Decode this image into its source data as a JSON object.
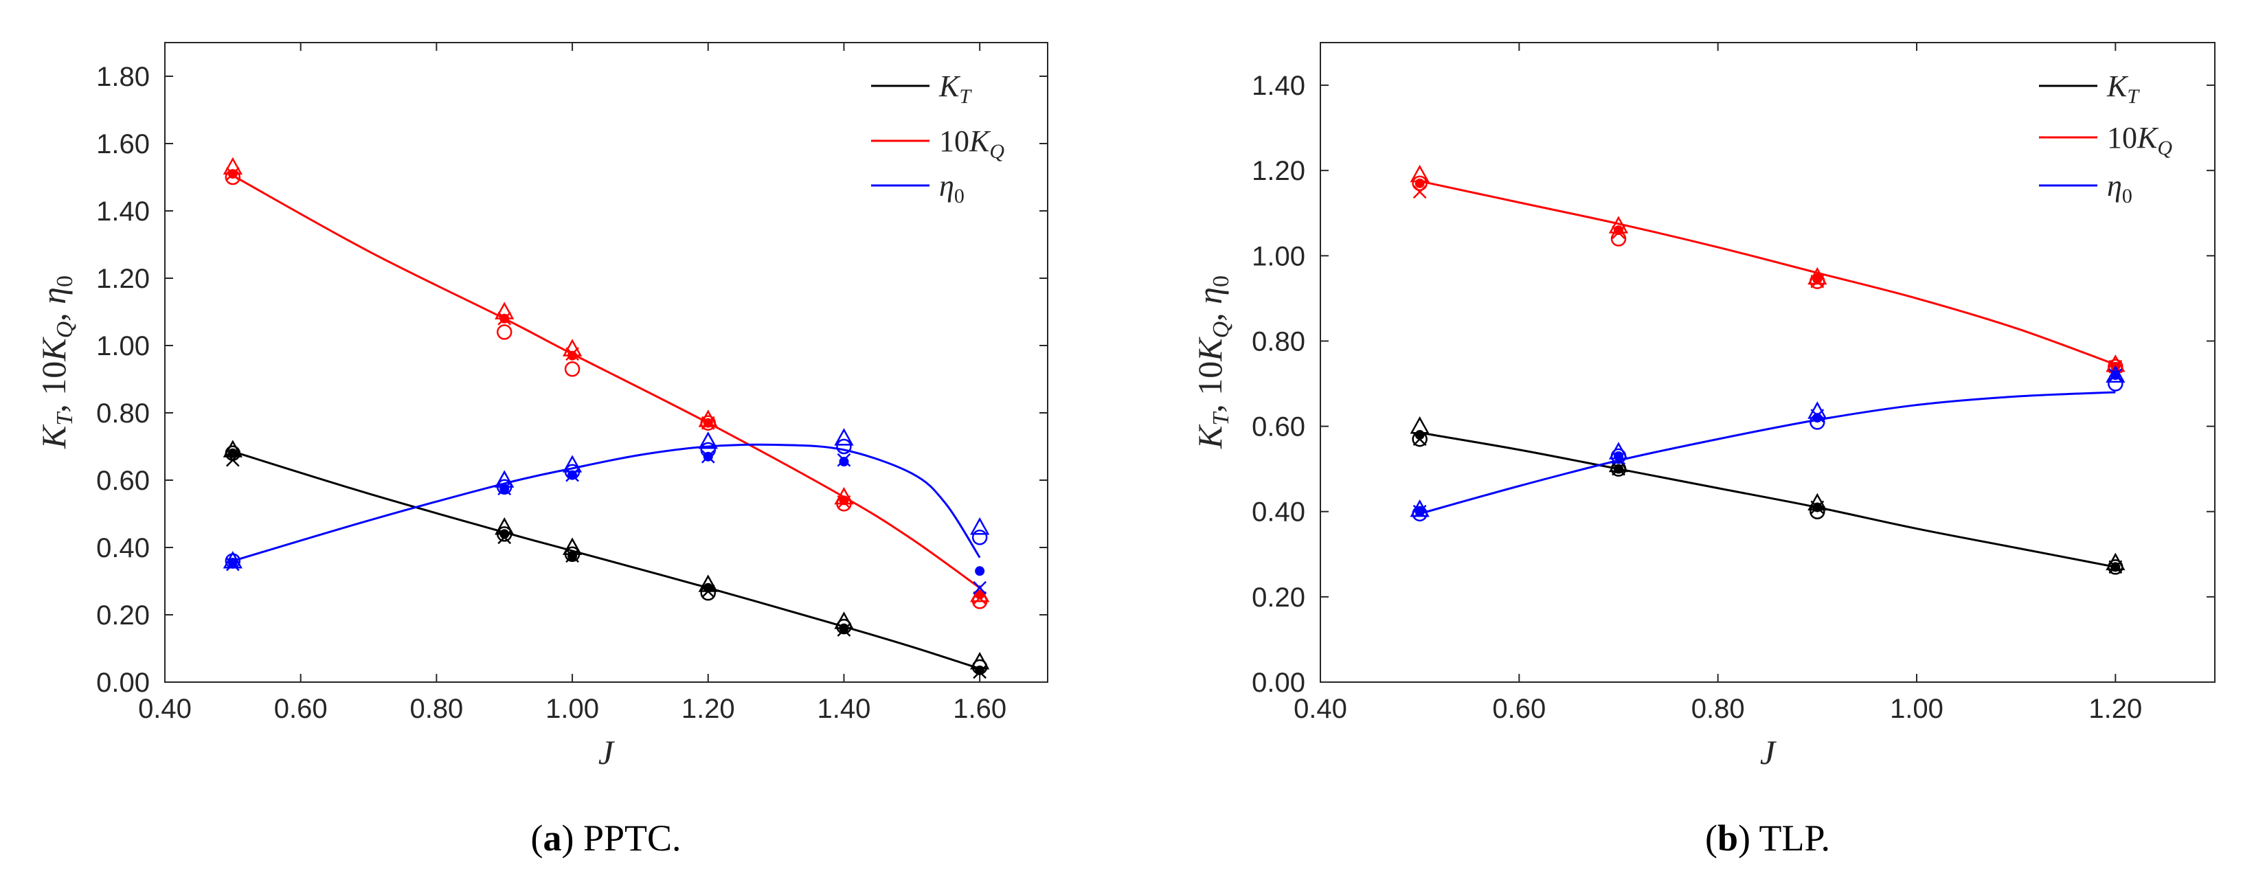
{
  "colors": {
    "KT": "#000000",
    "10KQ": "#ff0000",
    "eta0": "#0000ff"
  },
  "chart_data": [
    {
      "type": "line",
      "panel": "a",
      "caption": {
        "label": "a",
        "text": "PPTC."
      },
      "xlabel": "J",
      "ylabel": "K_T, 10K_Q, η_0",
      "xlim": [
        0.4,
        1.7
      ],
      "ylim": [
        0.0,
        1.9
      ],
      "xticks": [
        "0.40",
        "0.60",
        "0.80",
        "1.00",
        "1.20",
        "1.40",
        "1.60"
      ],
      "yticks": [
        "0.00",
        "0.20",
        "0.40",
        "0.60",
        "0.80",
        "1.00",
        "1.20",
        "1.40",
        "1.60",
        "1.80"
      ],
      "legend": {
        "position": "top-right",
        "entries": [
          "K_T",
          "10K_Q",
          "η_0"
        ]
      },
      "series": [
        {
          "name": "K_T",
          "color_key": "KT",
          "curve": {
            "x": [
              0.5,
              0.7,
              0.9,
              1.0,
              1.2,
              1.4,
              1.5,
              1.6
            ],
            "y": [
              0.685,
              0.56,
              0.445,
              0.39,
              0.28,
              0.165,
              0.105,
              0.04
            ]
          },
          "markers": [
            {
              "x": 0.5,
              "tri": 0.69,
              "circ": 0.68,
              "dot": 0.68,
              "cross": 0.66
            },
            {
              "x": 0.9,
              "tri": 0.46,
              "circ": 0.44,
              "dot": 0.44,
              "cross": 0.43
            },
            {
              "x": 1.0,
              "tri": 0.4,
              "circ": 0.38,
              "dot": 0.375,
              "cross": 0.375
            },
            {
              "x": 1.2,
              "tri": 0.29,
              "circ": 0.265,
              "dot": 0.28,
              "cross": 0.27
            },
            {
              "x": 1.4,
              "tri": 0.18,
              "circ": 0.165,
              "dot": 0.16,
              "cross": 0.155
            },
            {
              "x": 1.6,
              "tri": 0.06,
              "circ": 0.045,
              "dot": 0.035,
              "cross": 0.03
            }
          ]
        },
        {
          "name": "10K_Q",
          "color_key": "10KQ",
          "curve": {
            "x": [
              0.5,
              0.7,
              0.9,
              1.0,
              1.2,
              1.4,
              1.5,
              1.6
            ],
            "y": [
              1.505,
              1.28,
              1.08,
              0.975,
              0.77,
              0.55,
              0.425,
              0.28
            ]
          },
          "markers": [
            {
              "x": 0.5,
              "tri": 1.53,
              "circ": 1.5,
              "dot": 1.51,
              "cross": 1.51
            },
            {
              "x": 0.9,
              "tri": 1.1,
              "circ": 1.04,
              "dot": 1.08,
              "cross": 1.08
            },
            {
              "x": 1.0,
              "tri": 0.99,
              "circ": 0.93,
              "dot": 0.97,
              "cross": 0.975
            },
            {
              "x": 1.2,
              "tri": 0.78,
              "circ": 0.77,
              "dot": 0.77,
              "cross": 0.77
            },
            {
              "x": 1.4,
              "tri": 0.55,
              "circ": 0.53,
              "dot": 0.54,
              "cross": 0.535
            },
            {
              "x": 1.6,
              "tri": 0.26,
              "circ": 0.24,
              "dot": 0.26,
              "cross": 0.25
            }
          ]
        },
        {
          "name": "η_0",
          "color_key": "eta0",
          "curve": {
            "x": [
              0.5,
              0.7,
              0.9,
              1.0,
              1.1,
              1.2,
              1.3,
              1.4,
              1.5,
              1.55,
              1.6
            ],
            "y": [
              0.36,
              0.48,
              0.59,
              0.635,
              0.675,
              0.7,
              0.705,
              0.69,
              0.62,
              0.53,
              0.37
            ]
          },
          "markers": [
            {
              "x": 0.5,
              "tri": 0.36,
              "circ": 0.36,
              "dot": 0.355,
              "cross": 0.35
            },
            {
              "x": 0.9,
              "tri": 0.6,
              "circ": 0.58,
              "dot": 0.575,
              "cross": 0.575
            },
            {
              "x": 1.0,
              "tri": 0.645,
              "circ": 0.625,
              "dot": 0.615,
              "cross": 0.615
            },
            {
              "x": 1.2,
              "tri": 0.715,
              "circ": 0.69,
              "dot": 0.67,
              "cross": 0.67
            },
            {
              "x": 1.4,
              "tri": 0.725,
              "circ": 0.7,
              "dot": 0.655,
              "cross": 0.66
            },
            {
              "x": 1.6,
              "tri": 0.46,
              "circ": 0.43,
              "dot": 0.33,
              "cross": 0.28
            }
          ]
        }
      ]
    },
    {
      "type": "line",
      "panel": "b",
      "caption": {
        "label": "b",
        "text": "TLP."
      },
      "xlabel": "J",
      "ylabel": "K_T, 10K_Q, η_0",
      "xlim": [
        0.4,
        1.3
      ],
      "ylim": [
        0.0,
        1.5
      ],
      "xticks": [
        "0.40",
        "0.60",
        "0.80",
        "1.00",
        "1.20"
      ],
      "yticks": [
        "0.00",
        "0.20",
        "0.40",
        "0.60",
        "0.80",
        "1.00",
        "1.20",
        "1.40"
      ],
      "legend": {
        "position": "top-right",
        "entries": [
          "K_T",
          "10K_Q",
          "η_0"
        ]
      },
      "series": [
        {
          "name": "K_T",
          "color_key": "KT",
          "curve": {
            "x": [
              0.5,
              0.6,
              0.7,
              0.8,
              0.9,
              1.0,
              1.1,
              1.2
            ],
            "y": [
              0.585,
              0.545,
              0.5,
              0.455,
              0.41,
              0.36,
              0.315,
              0.27
            ]
          },
          "markers": [
            {
              "x": 0.5,
              "tri": 0.6,
              "circ": 0.57,
              "dot": 0.58,
              "cross": 0.57
            },
            {
              "x": 0.7,
              "tri": 0.51,
              "circ": 0.5,
              "dot": 0.5,
              "cross": 0.5
            },
            {
              "x": 0.9,
              "tri": 0.42,
              "circ": 0.4,
              "dot": 0.41,
              "cross": 0.41
            },
            {
              "x": 1.2,
              "tri": 0.28,
              "circ": 0.27,
              "dot": 0.27,
              "cross": 0.27
            }
          ]
        },
        {
          "name": "10K_Q",
          "color_key": "10KQ",
          "curve": {
            "x": [
              0.5,
              0.6,
              0.7,
              0.8,
              0.9,
              1.0,
              1.1,
              1.2
            ],
            "y": [
              1.175,
              1.125,
              1.075,
              1.02,
              0.96,
              0.9,
              0.83,
              0.745
            ]
          },
          "markers": [
            {
              "x": 0.5,
              "tri": 1.19,
              "circ": 1.17,
              "dot": 1.17,
              "cross": 1.15
            },
            {
              "x": 0.7,
              "tri": 1.07,
              "circ": 1.04,
              "dot": 1.06,
              "cross": 1.055
            },
            {
              "x": 0.9,
              "tri": 0.95,
              "circ": 0.94,
              "dot": 0.945,
              "cross": 0.94
            },
            {
              "x": 1.2,
              "tri": 0.745,
              "circ": 0.74,
              "dot": 0.74,
              "cross": 0.74
            }
          ]
        },
        {
          "name": "η_0",
          "color_key": "eta0",
          "curve": {
            "x": [
              0.5,
              0.6,
              0.7,
              0.8,
              0.9,
              1.0,
              1.1,
              1.2
            ],
            "y": [
              0.395,
              0.46,
              0.52,
              0.57,
              0.615,
              0.65,
              0.67,
              0.68
            ]
          },
          "markers": [
            {
              "x": 0.5,
              "tri": 0.405,
              "circ": 0.395,
              "dot": 0.4,
              "cross": 0.4
            },
            {
              "x": 0.7,
              "tri": 0.54,
              "circ": 0.53,
              "dot": 0.53,
              "cross": 0.525
            },
            {
              "x": 0.9,
              "tri": 0.635,
              "circ": 0.61,
              "dot": 0.62,
              "cross": 0.625
            },
            {
              "x": 1.2,
              "tri": 0.72,
              "circ": 0.7,
              "dot": 0.72,
              "cross": 0.72
            }
          ]
        }
      ]
    }
  ]
}
